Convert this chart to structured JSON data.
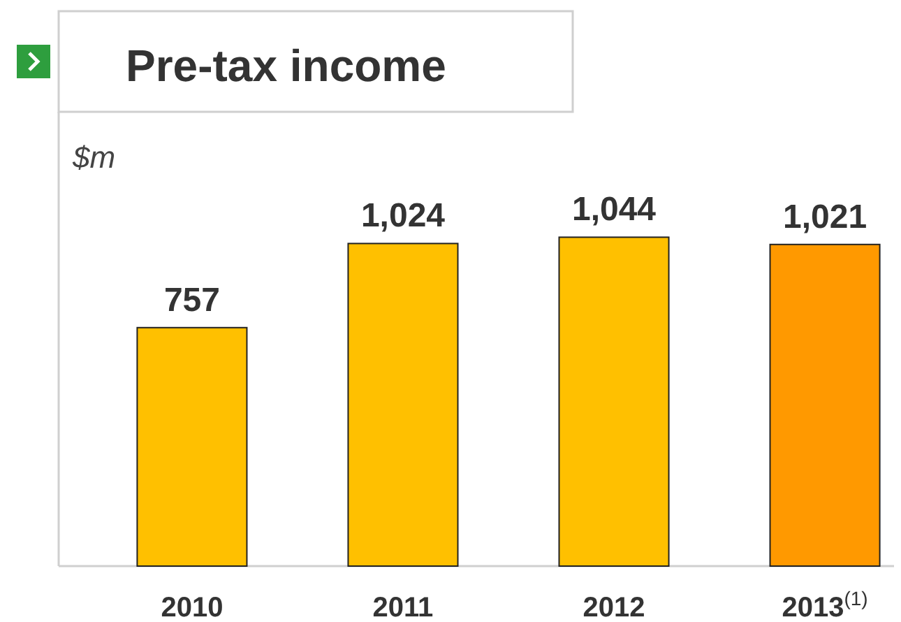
{
  "chart_data": {
    "type": "bar",
    "title": "Pre-tax income",
    "ylabel": "$m",
    "categories": [
      "2010",
      "2011",
      "2012",
      "2013$^{(1)}$"
    ],
    "values": [
      757,
      1024,
      1044,
      1021
    ],
    "value_labels": [
      "757",
      "1,024",
      "1,044",
      "1,021"
    ],
    "colors": [
      "#ffc000",
      "#ffc000",
      "#ffc000",
      "#ff9900"
    ]
  }
}
